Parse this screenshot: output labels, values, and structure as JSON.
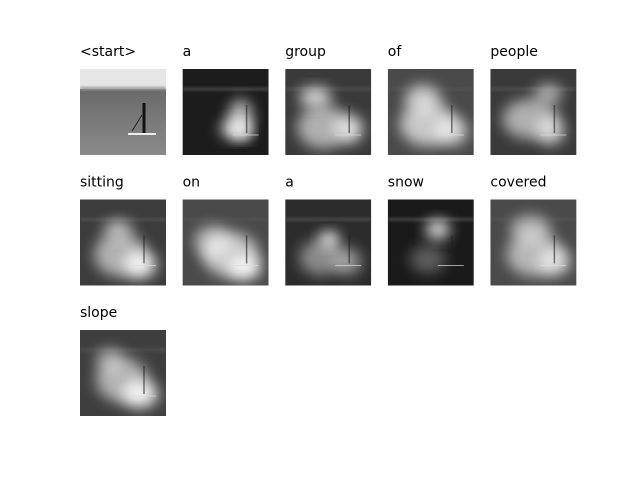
{
  "captions": [
    "<start>",
    "a",
    "group",
    "of",
    "people",
    "sitting",
    "on",
    "a",
    "snow",
    "covered",
    "slope"
  ]
}
